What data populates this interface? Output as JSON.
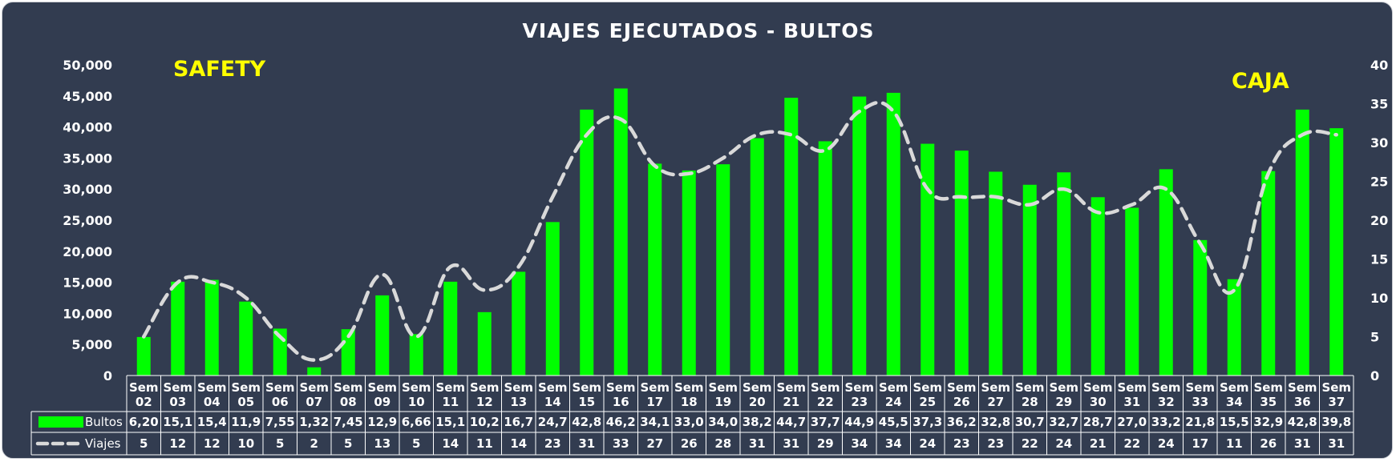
{
  "chart_data": {
    "type": "bar",
    "title": "VIAJES EJECUTADOS - BULTOS",
    "annotations": {
      "left": "SAFETY",
      "right": "CAJA"
    },
    "categories": [
      [
        "Sem",
        "02"
      ],
      [
        "Sem",
        "03"
      ],
      [
        "Sem",
        "04"
      ],
      [
        "Sem",
        "05"
      ],
      [
        "Sem",
        "06"
      ],
      [
        "Sem",
        "07"
      ],
      [
        "Sem",
        "08"
      ],
      [
        "Sem",
        "09"
      ],
      [
        "Sem",
        "10"
      ],
      [
        "Sem",
        "11"
      ],
      [
        "Sem",
        "12"
      ],
      [
        "Sem",
        "13"
      ],
      [
        "Sem",
        "14"
      ],
      [
        "Sem",
        "15"
      ],
      [
        "Sem",
        "16"
      ],
      [
        "Sem",
        "17"
      ],
      [
        "Sem",
        "18"
      ],
      [
        "Sem",
        "19"
      ],
      [
        "Sem",
        "20"
      ],
      [
        "Sem",
        "21"
      ],
      [
        "Sem",
        "22"
      ],
      [
        "Sem",
        "23"
      ],
      [
        "Sem",
        "24"
      ],
      [
        "Sem",
        "25"
      ],
      [
        "Sem",
        "26"
      ],
      [
        "Sem",
        "27"
      ],
      [
        "Sem",
        "28"
      ],
      [
        "Sem",
        "29"
      ],
      [
        "Sem",
        "30"
      ],
      [
        "Sem",
        "31"
      ],
      [
        "Sem",
        "32"
      ],
      [
        "Sem",
        "33"
      ],
      [
        "Sem",
        "34"
      ],
      [
        "Sem",
        "35"
      ],
      [
        "Sem",
        "36"
      ],
      [
        "Sem",
        "37"
      ]
    ],
    "series": [
      {
        "name": "Bultos",
        "type": "bar",
        "axis": "left",
        "color": "#00ff00",
        "values": [
          6200,
          15100,
          15400,
          11900,
          7550,
          1320,
          7450,
          12900,
          6660,
          15100,
          10200,
          16700,
          24700,
          42800,
          46200,
          34100,
          33000,
          34000,
          38200,
          44700,
          37700,
          44900,
          45500,
          37300,
          36200,
          32800,
          30700,
          32700,
          28700,
          27000,
          33200,
          21800,
          15500,
          32900,
          42800,
          39800
        ],
        "labels": [
          "6,20",
          "15,1",
          "15,4",
          "11,9",
          "7,55",
          "1,32",
          "7,45",
          "12,9",
          "6,66",
          "15,1",
          "10,2",
          "16,7",
          "24,7",
          "42,8",
          "46,2",
          "34,1",
          "33,0",
          "34,0",
          "38,2",
          "44,7",
          "37,7",
          "44,9",
          "45,5",
          "37,3",
          "36,2",
          "32,8",
          "30,7",
          "32,7",
          "28,7",
          "27,0",
          "33,2",
          "21,8",
          "15,5",
          "32,9",
          "42,8",
          "39,8"
        ]
      },
      {
        "name": "Viajes",
        "type": "line",
        "axis": "right",
        "color": "#d9d9d9",
        "style": "dashed",
        "values": [
          5,
          12,
          12,
          10,
          5,
          2,
          5,
          13,
          5,
          14,
          11,
          14,
          23,
          31,
          33,
          27,
          26,
          28,
          31,
          31,
          29,
          34,
          34,
          24,
          23,
          23,
          22,
          24,
          21,
          22,
          24,
          17,
          11,
          26,
          31,
          31
        ],
        "labels": [
          "5",
          "12",
          "12",
          "10",
          "5",
          "2",
          "5",
          "13",
          "5",
          "14",
          "11",
          "14",
          "23",
          "31",
          "33",
          "27",
          "26",
          "28",
          "31",
          "31",
          "29",
          "34",
          "34",
          "24",
          "23",
          "23",
          "22",
          "24",
          "21",
          "22",
          "24",
          "17",
          "11",
          "26",
          "31",
          "31"
        ]
      }
    ],
    "y_left": {
      "min": 0,
      "max": 50000,
      "ticks": [
        "0",
        "5,000",
        "10,000",
        "15,000",
        "20,000",
        "25,000",
        "30,000",
        "35,000",
        "40,000",
        "45,000",
        "50,000"
      ]
    },
    "y_right": {
      "min": 0,
      "max": 40,
      "ticks": [
        "0",
        "5",
        "10",
        "15",
        "20",
        "25",
        "30",
        "35",
        "40"
      ]
    },
    "grid": false,
    "legend": "data-table"
  }
}
